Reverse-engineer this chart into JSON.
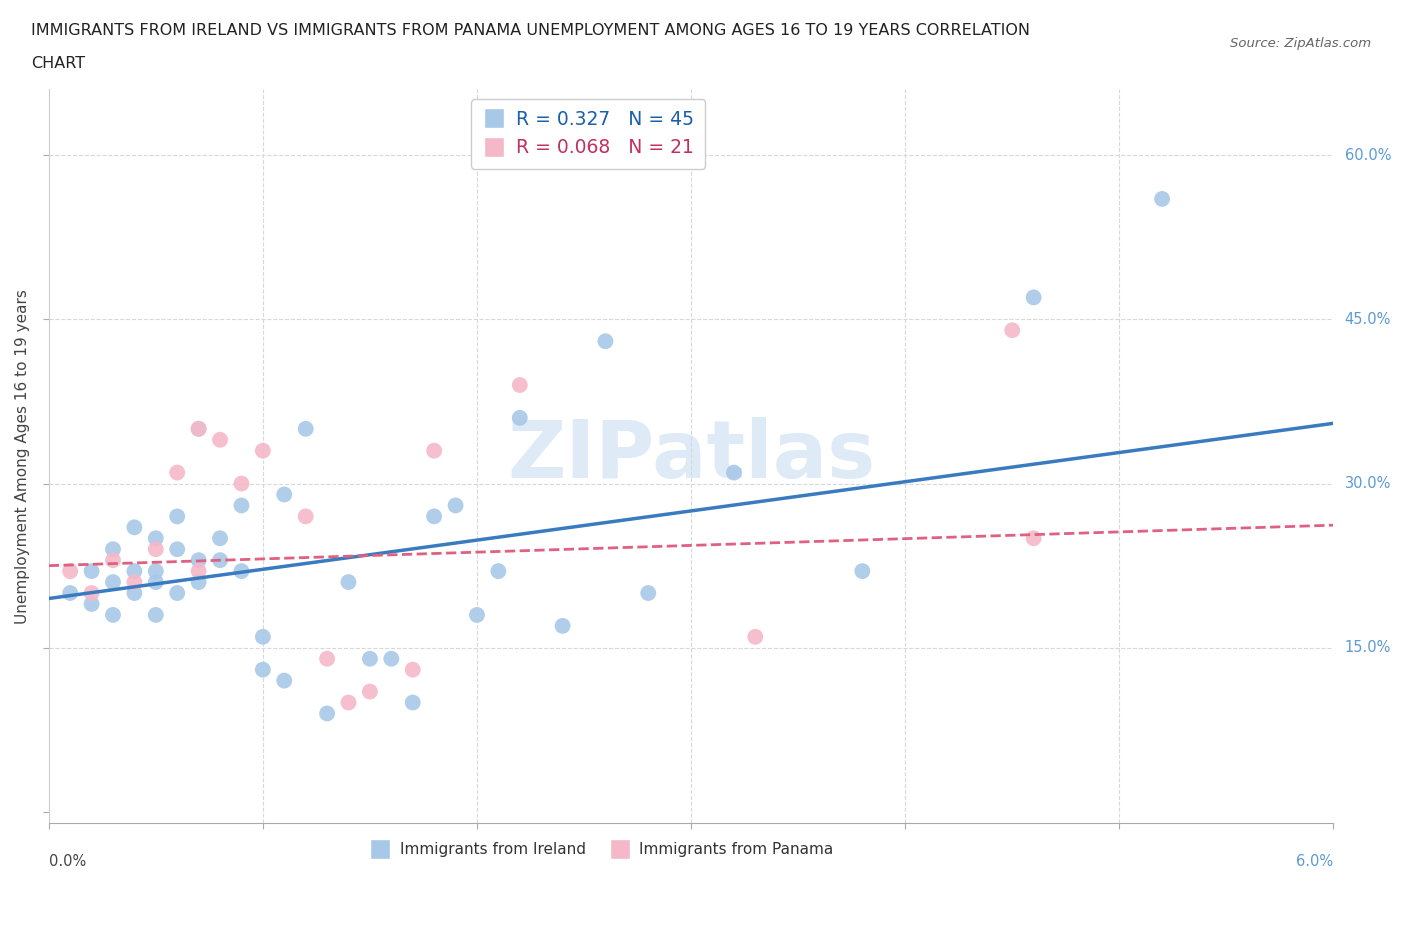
{
  "title_line1": "IMMIGRANTS FROM IRELAND VS IMMIGRANTS FROM PANAMA UNEMPLOYMENT AMONG AGES 16 TO 19 YEARS CORRELATION",
  "title_line2": "CHART",
  "source": "Source: ZipAtlas.com",
  "ylabel": "Unemployment Among Ages 16 to 19 years",
  "ytick_positions": [
    0.0,
    0.15,
    0.3,
    0.45,
    0.6
  ],
  "ytick_labels": [
    "",
    "15.0%",
    "30.0%",
    "45.0%",
    "60.0%"
  ],
  "xlim": [
    0.0,
    0.06
  ],
  "ylim": [
    -0.01,
    0.66
  ],
  "ireland_R": 0.327,
  "ireland_N": 45,
  "panama_R": 0.068,
  "panama_N": 21,
  "ireland_color": "#a8c8e8",
  "panama_color": "#f5b8c8",
  "ireland_line_color": "#3a7bbf",
  "panama_line_color": "#e06080",
  "ireland_x": [
    0.001,
    0.002,
    0.002,
    0.003,
    0.003,
    0.003,
    0.004,
    0.004,
    0.004,
    0.005,
    0.005,
    0.005,
    0.005,
    0.006,
    0.006,
    0.006,
    0.007,
    0.007,
    0.007,
    0.008,
    0.008,
    0.009,
    0.009,
    0.01,
    0.01,
    0.011,
    0.011,
    0.012,
    0.013,
    0.014,
    0.015,
    0.016,
    0.017,
    0.018,
    0.019,
    0.02,
    0.021,
    0.022,
    0.024,
    0.026,
    0.028,
    0.032,
    0.038,
    0.046,
    0.052
  ],
  "ireland_y": [
    0.2,
    0.22,
    0.19,
    0.21,
    0.24,
    0.18,
    0.22,
    0.26,
    0.2,
    0.25,
    0.22,
    0.18,
    0.21,
    0.24,
    0.27,
    0.2,
    0.35,
    0.23,
    0.21,
    0.23,
    0.25,
    0.28,
    0.22,
    0.13,
    0.16,
    0.12,
    0.29,
    0.35,
    0.09,
    0.21,
    0.14,
    0.14,
    0.1,
    0.27,
    0.28,
    0.18,
    0.22,
    0.36,
    0.17,
    0.43,
    0.2,
    0.31,
    0.22,
    0.47,
    0.56
  ],
  "panama_x": [
    0.001,
    0.002,
    0.003,
    0.004,
    0.005,
    0.006,
    0.007,
    0.007,
    0.008,
    0.009,
    0.01,
    0.012,
    0.013,
    0.014,
    0.015,
    0.017,
    0.018,
    0.022,
    0.033,
    0.045,
    0.046
  ],
  "panama_y": [
    0.22,
    0.2,
    0.23,
    0.21,
    0.24,
    0.31,
    0.35,
    0.22,
    0.34,
    0.3,
    0.33,
    0.27,
    0.14,
    0.1,
    0.11,
    0.13,
    0.33,
    0.39,
    0.16,
    0.44,
    0.25
  ],
  "ireland_trend_x0": 0.0,
  "ireland_trend_y0": 0.195,
  "ireland_trend_x1": 0.06,
  "ireland_trend_y1": 0.355,
  "panama_trend_x0": 0.0,
  "panama_trend_y0": 0.225,
  "panama_trend_x1": 0.06,
  "panama_trend_y1": 0.262,
  "watermark": "ZIPatlas",
  "watermark_color": "#c8ddf0",
  "background_color": "#ffffff",
  "grid_color": "#d8d8d8",
  "xtick_positions": [
    0.0,
    0.01,
    0.02,
    0.03,
    0.04,
    0.05,
    0.06
  ]
}
